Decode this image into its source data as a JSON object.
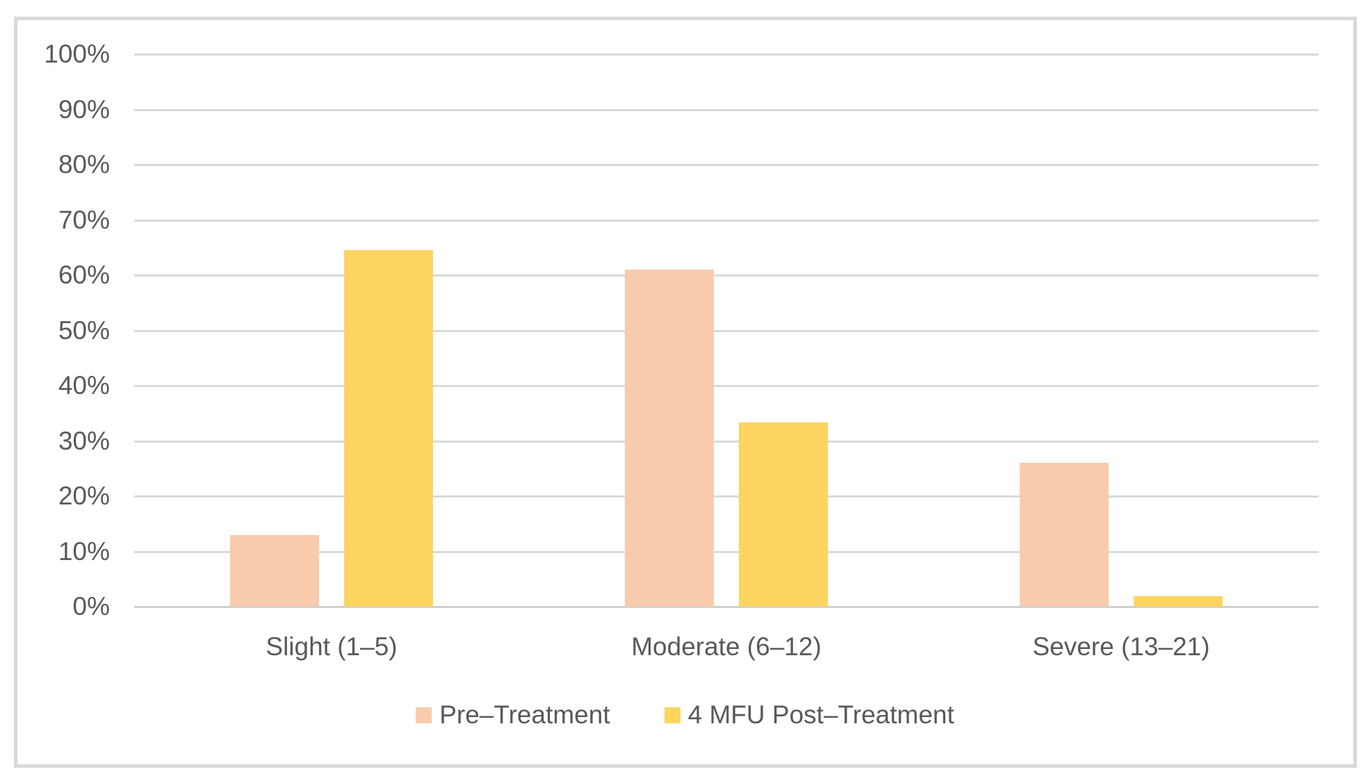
{
  "chart_data": {
    "type": "bar",
    "title": "",
    "xlabel": "",
    "ylabel": "",
    "categories": [
      "Slight (1–5)",
      "Moderate (6–12)",
      "Severe (13–21)"
    ],
    "series": [
      {
        "name": "Pre–Treatment",
        "color": "#F8CBAD",
        "values": [
          13,
          61,
          26
        ]
      },
      {
        "name": "4 MFU Post–Treatment",
        "color": "#FCD45F",
        "values": [
          64.5,
          33.3,
          1.9
        ]
      }
    ],
    "values_unit": "percent",
    "ylim": [
      0,
      100
    ],
    "yticks": [
      "0%",
      "10%",
      "20%",
      "30%",
      "40%",
      "50%",
      "60%",
      "70%",
      "80%",
      "90%",
      "100%"
    ],
    "grid": true,
    "legend_position": "bottom"
  },
  "colors": {
    "grid": "#D9D9D9",
    "axis_text": "#595959",
    "frame_border": "#D8D8D8",
    "background": "#FFFFFF"
  }
}
